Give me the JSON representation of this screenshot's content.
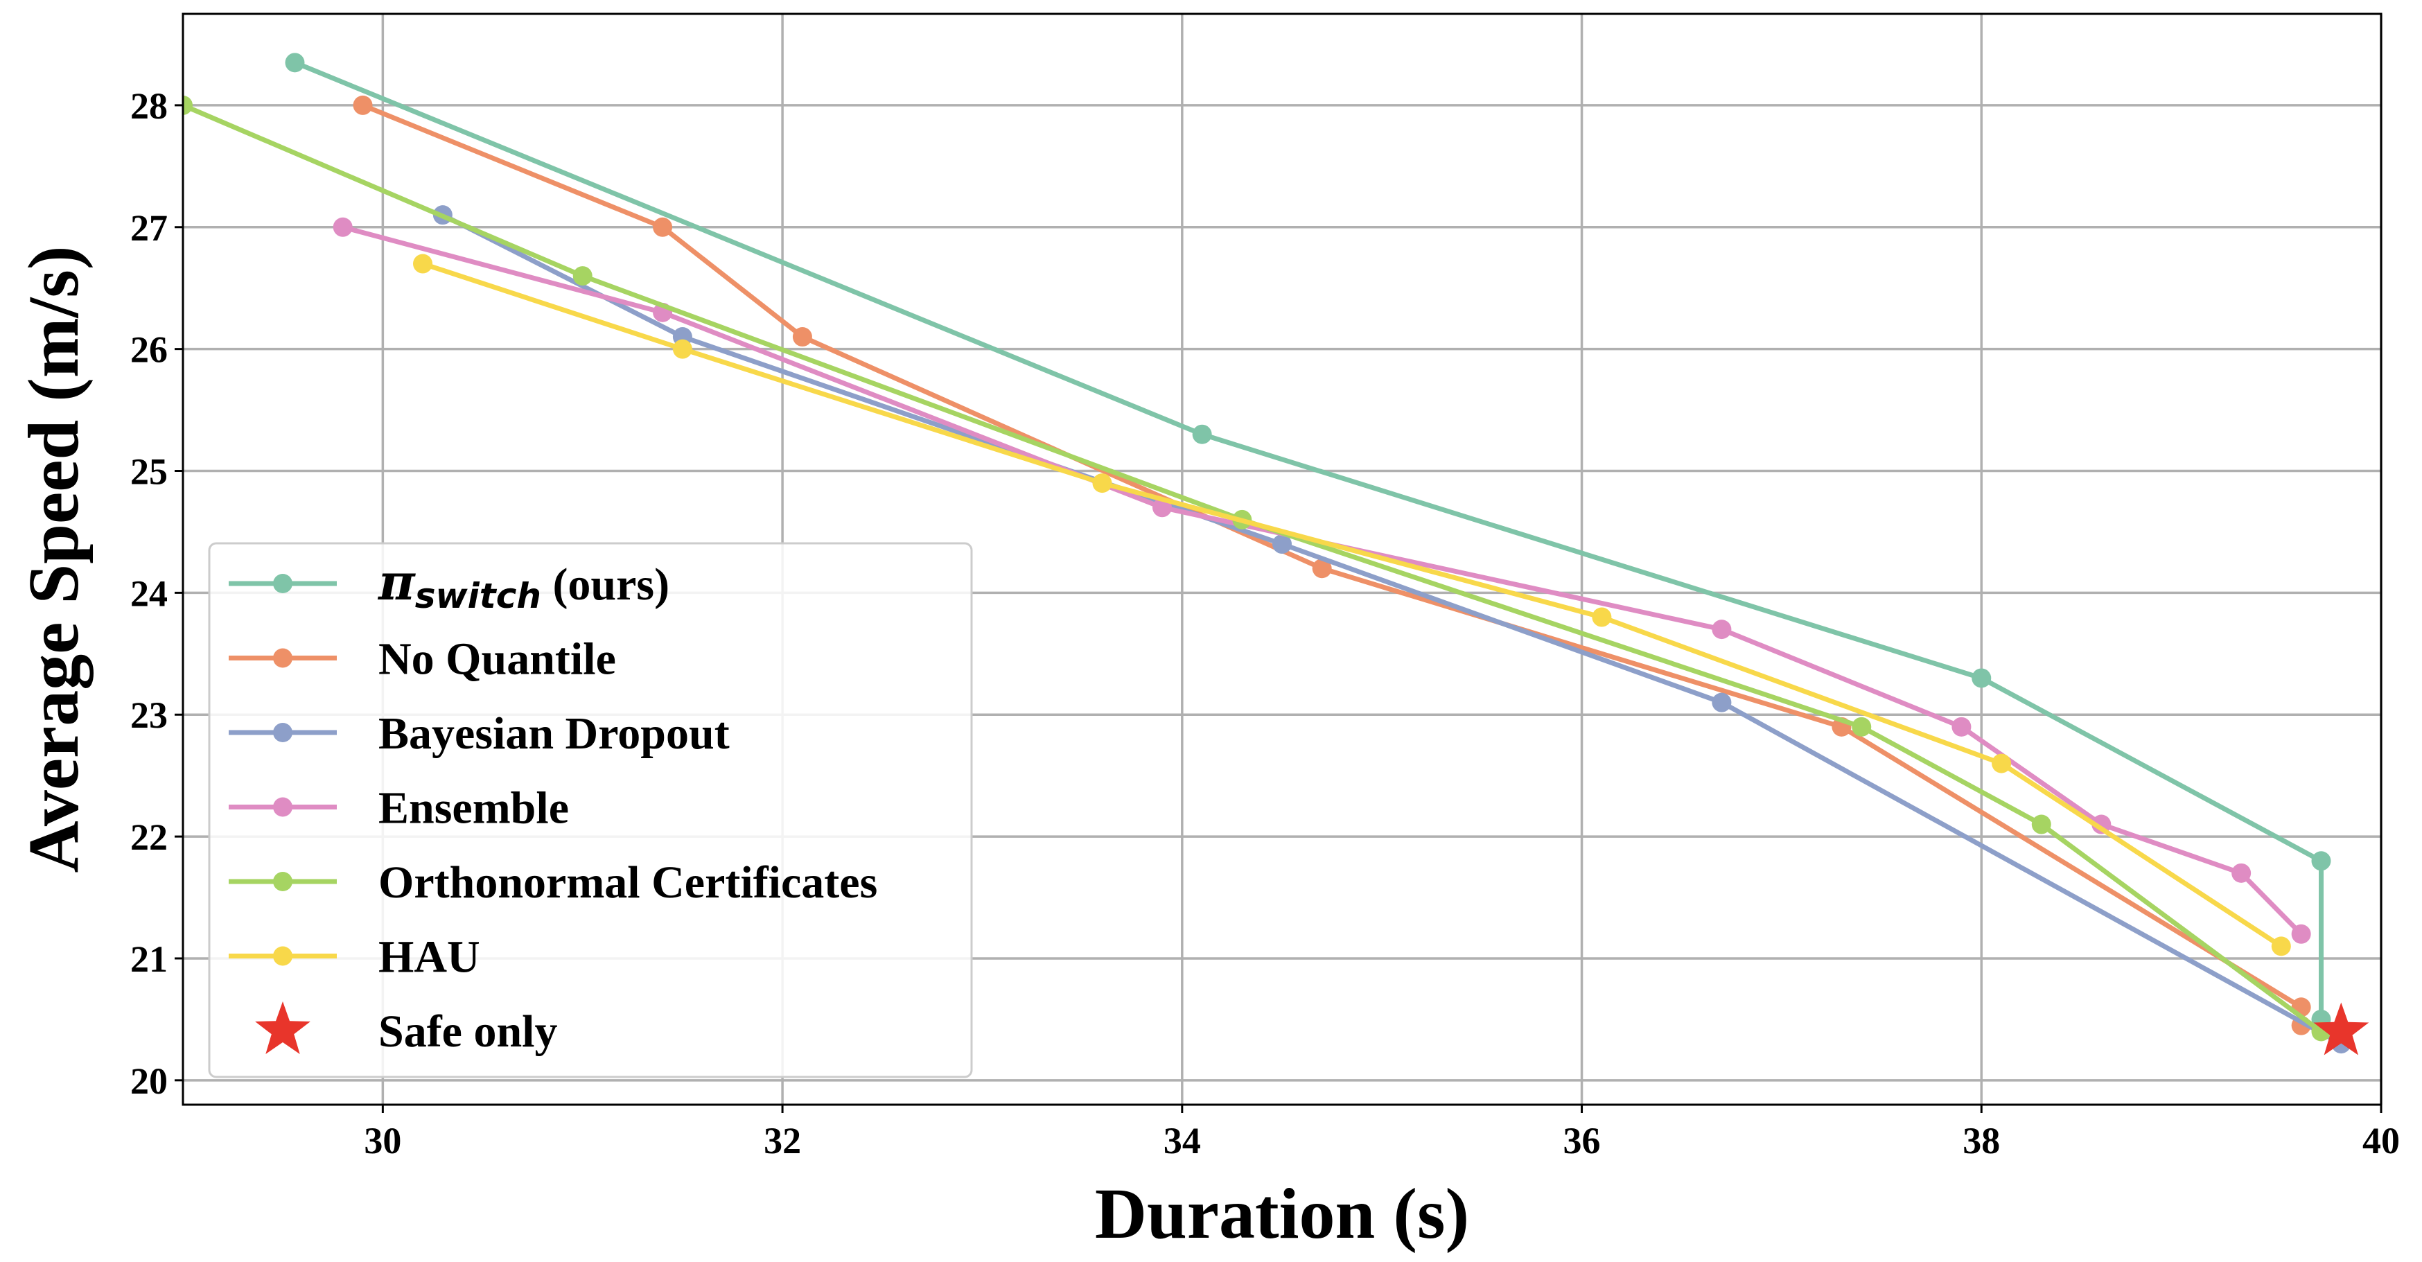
{
  "chart_data": {
    "type": "line",
    "title": "",
    "xlabel": "Duration (s)",
    "ylabel": "Average Speed (m/s)",
    "xlim": [
      29,
      40
    ],
    "ylim": [
      19.8,
      28.75
    ],
    "x_ticks": [
      30,
      32,
      34,
      36,
      38,
      40
    ],
    "y_ticks": [
      20,
      21,
      22,
      23,
      24,
      25,
      26,
      27,
      28
    ],
    "x_tick_labels": [
      "30",
      "32",
      "34",
      "36",
      "38",
      "40"
    ],
    "y_tick_labels": [
      "20",
      "21",
      "22",
      "23",
      "24",
      "25",
      "26",
      "27",
      "28"
    ],
    "grid": true,
    "legend_position": "lower-left",
    "series": [
      {
        "name": "π",
        "name_sub": "switch",
        "name_suffix": " (ours)",
        "color": "#7fc4a8",
        "marker": "circle",
        "points": [
          [
            29.56,
            28.35
          ],
          [
            34.1,
            25.3
          ],
          [
            38.0,
            23.3
          ],
          [
            39.7,
            21.8
          ],
          [
            39.7,
            20.5
          ]
        ]
      },
      {
        "name": "No Quantile",
        "color": "#ee9067",
        "marker": "circle",
        "points": [
          [
            29.9,
            28.0
          ],
          [
            31.4,
            27.0
          ],
          [
            32.1,
            26.1
          ],
          [
            34.7,
            24.2
          ],
          [
            37.3,
            22.9
          ],
          [
            39.6,
            20.6
          ],
          [
            39.6,
            20.45
          ]
        ]
      },
      {
        "name": "Bayesian Dropout",
        "color": "#8d9fc9",
        "marker": "circle",
        "points": [
          [
            30.3,
            27.1
          ],
          [
            31.5,
            26.1
          ],
          [
            34.5,
            24.4
          ],
          [
            36.7,
            23.1
          ],
          [
            39.8,
            20.3
          ]
        ]
      },
      {
        "name": "Ensemble",
        "color": "#df8cc3",
        "marker": "circle",
        "points": [
          [
            29.8,
            27.0
          ],
          [
            31.4,
            26.3
          ],
          [
            33.9,
            24.7
          ],
          [
            36.7,
            23.7
          ],
          [
            37.9,
            22.9
          ],
          [
            38.6,
            22.1
          ],
          [
            39.3,
            21.7
          ],
          [
            39.6,
            21.2
          ]
        ]
      },
      {
        "name": "Orthonormal Certificates",
        "color": "#a6d462",
        "marker": "circle",
        "points": [
          [
            29.0,
            28.0
          ],
          [
            31.0,
            26.6
          ],
          [
            34.3,
            24.6
          ],
          [
            37.4,
            22.9
          ],
          [
            38.3,
            22.1
          ],
          [
            39.7,
            20.4
          ]
        ]
      },
      {
        "name": "HAU",
        "color": "#f8d84a",
        "marker": "circle",
        "points": [
          [
            30.2,
            26.7
          ],
          [
            31.5,
            26.0
          ],
          [
            33.6,
            24.9
          ],
          [
            36.1,
            23.8
          ],
          [
            38.1,
            22.6
          ],
          [
            39.5,
            21.1
          ]
        ]
      },
      {
        "name": "Safe only",
        "color": "#e8352b",
        "marker": "star",
        "points": [
          [
            39.8,
            20.4
          ]
        ]
      }
    ]
  }
}
